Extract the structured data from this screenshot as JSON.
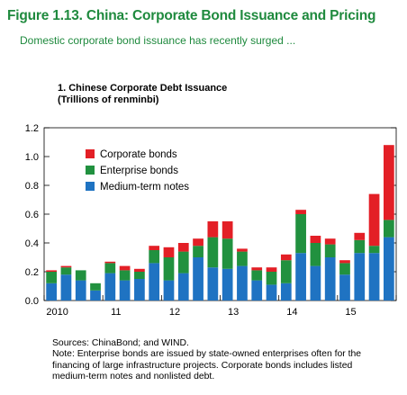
{
  "figure": {
    "title": "Figure 1.13. China: Corporate Bond Issuance and Pricing",
    "subtitle": "Domestic corporate bond issuance has recently surged ..."
  },
  "panel": {
    "title_line1": "1. Chinese Corporate Debt Issuance",
    "title_line2": "(Trillions of renminbi)"
  },
  "notes": {
    "sources": "Sources: ChinaBond; and WIND.",
    "note_line1": "Note: Enterprise bonds are issued by state-owned enterprises often for the",
    "note_line2": "financing of large infrastructure projects. Corporate bonds includes listed",
    "note_line3": "medium-term notes and nonlisted debt."
  },
  "chart_data": {
    "type": "bar",
    "stacked": true,
    "categories": [
      "2010Q1",
      "2010Q2",
      "2010Q3",
      "2010Q4",
      "2011Q1",
      "2011Q2",
      "2011Q3",
      "2011Q4",
      "2012Q1",
      "2012Q2",
      "2012Q3",
      "2012Q4",
      "2013Q1",
      "2013Q2",
      "2013Q3",
      "2013Q4",
      "2014Q1",
      "2014Q2",
      "2014Q3",
      "2014Q4",
      "2015Q1",
      "2015Q2",
      "2015Q3",
      "2015Q4"
    ],
    "x_tick_labels": [
      "2010",
      "11",
      "12",
      "13",
      "14",
      "15"
    ],
    "ylim": [
      0,
      1.2
    ],
    "y_ticks": [
      "0.0",
      "0.2",
      "0.4",
      "0.6",
      "0.8",
      "1.0",
      "1.2"
    ],
    "legend_position": "top-left",
    "series": [
      {
        "name": "Medium-term notes",
        "color": "#1f73c2",
        "values": [
          0.12,
          0.18,
          0.14,
          0.07,
          0.19,
          0.14,
          0.15,
          0.26,
          0.14,
          0.19,
          0.3,
          0.23,
          0.22,
          0.24,
          0.14,
          0.11,
          0.12,
          0.33,
          0.24,
          0.3,
          0.18,
          0.33,
          0.33,
          0.44
        ]
      },
      {
        "name": "Enterprise bonds",
        "color": "#21913f",
        "values": [
          0.08,
          0.05,
          0.07,
          0.05,
          0.07,
          0.07,
          0.05,
          0.09,
          0.16,
          0.15,
          0.08,
          0.21,
          0.21,
          0.1,
          0.07,
          0.09,
          0.16,
          0.27,
          0.16,
          0.09,
          0.08,
          0.09,
          0.05,
          0.12
        ]
      },
      {
        "name": "Corporate bonds",
        "color": "#e31f26",
        "values": [
          0.01,
          0.01,
          0.0,
          0.0,
          0.01,
          0.03,
          0.02,
          0.03,
          0.07,
          0.06,
          0.05,
          0.11,
          0.12,
          0.02,
          0.02,
          0.03,
          0.04,
          0.03,
          0.05,
          0.04,
          0.02,
          0.05,
          0.36,
          0.52
        ]
      }
    ]
  }
}
